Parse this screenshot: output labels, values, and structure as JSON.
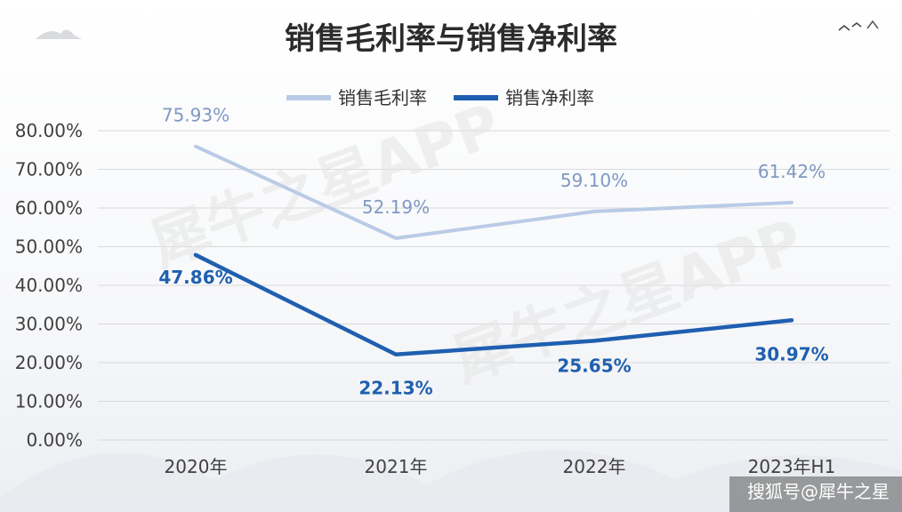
{
  "chart_data": {
    "type": "line",
    "title": "销售毛利率与销售净利率",
    "categories": [
      "2020年",
      "2021年",
      "2022年",
      "2023年H1"
    ],
    "series": [
      {
        "name": "销售毛利率",
        "values": [
          75.93,
          52.19,
          59.1,
          61.42
        ],
        "labels": [
          "75.93%",
          "52.19%",
          "59.10%",
          "61.42%"
        ],
        "color": "#b9cbe6"
      },
      {
        "name": "销售净利率",
        "values": [
          47.86,
          22.13,
          25.65,
          30.97
        ],
        "labels": [
          "47.86%",
          "22.13%",
          "25.65%",
          "30.97%"
        ],
        "color": "#1f5fb0"
      }
    ],
    "yticks": [
      "0.00%",
      "10.00%",
      "20.00%",
      "30.00%",
      "40.00%",
      "50.00%",
      "60.00%",
      "70.00%",
      "80.00%"
    ],
    "ylim": [
      0,
      80
    ],
    "grid": true,
    "legend_position": "top-center"
  },
  "watermark": "犀牛之星APP",
  "credit": "搜狐号@犀牛之星"
}
